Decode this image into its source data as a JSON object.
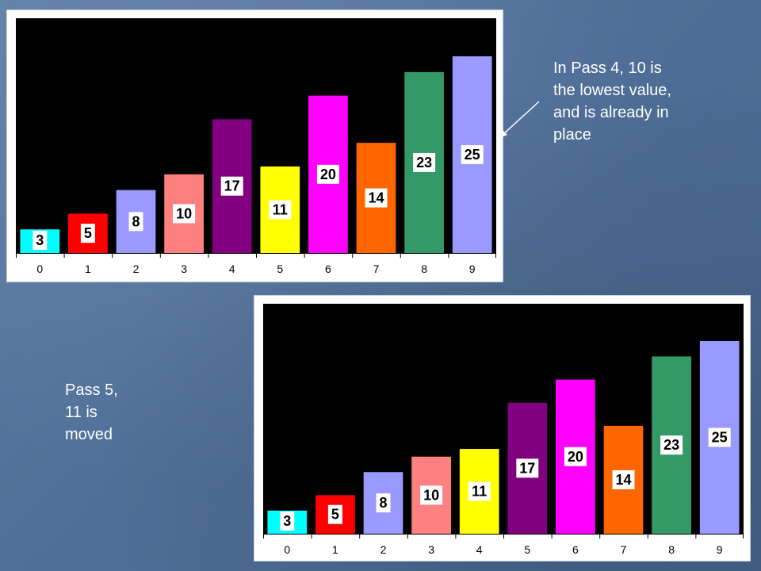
{
  "annotations": {
    "top": [
      "In Pass 4, 10 is",
      "the lowest value,",
      "and is already in",
      "place"
    ],
    "bottom": [
      "Pass 5,",
      "11 is",
      "moved"
    ]
  },
  "chart_data": [
    {
      "type": "bar",
      "categories": [
        "0",
        "1",
        "2",
        "3",
        "4",
        "5",
        "6",
        "7",
        "8",
        "9"
      ],
      "values": [
        3,
        5,
        8,
        10,
        17,
        11,
        20,
        14,
        23,
        25
      ],
      "colors": [
        "#00ffff",
        "#ff0000",
        "#9999ff",
        "#ff8080",
        "#800080",
        "#ffff00",
        "#ff00ff",
        "#ff6600",
        "#339966",
        "#9999ff"
      ],
      "ylim": [
        0,
        25
      ],
      "grid": false,
      "background": "#000000"
    },
    {
      "type": "bar",
      "categories": [
        "0",
        "1",
        "2",
        "3",
        "4",
        "5",
        "6",
        "7",
        "8",
        "9"
      ],
      "values": [
        3,
        5,
        8,
        10,
        11,
        17,
        20,
        14,
        23,
        25
      ],
      "colors": [
        "#00ffff",
        "#ff0000",
        "#9999ff",
        "#ff8080",
        "#ffff00",
        "#800080",
        "#ff00ff",
        "#ff6600",
        "#339966",
        "#9999ff"
      ],
      "ylim": [
        0,
        25
      ],
      "grid": false,
      "background": "#000000"
    }
  ]
}
